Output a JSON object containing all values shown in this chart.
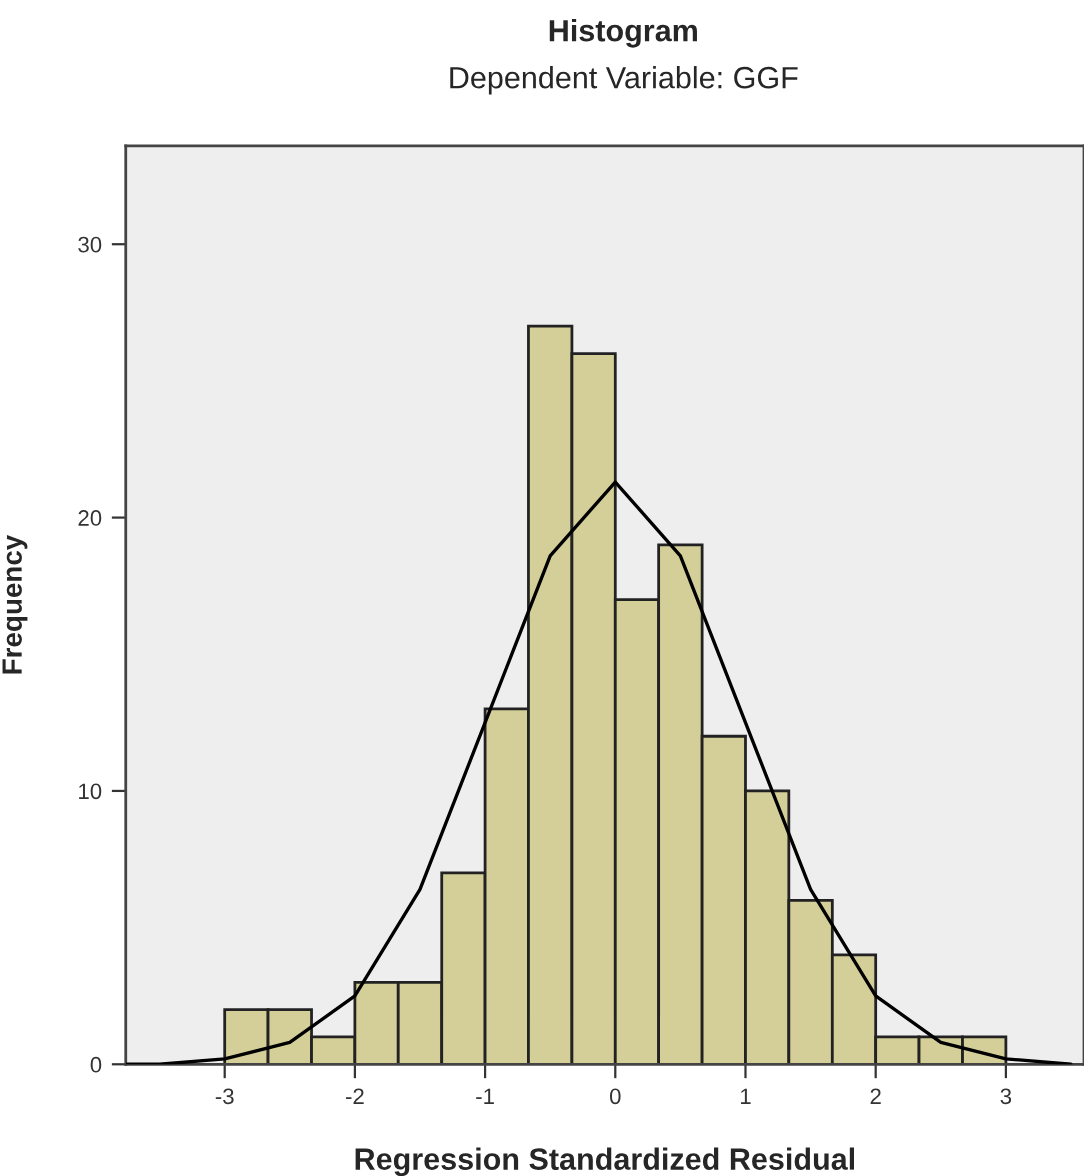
{
  "chart_data": {
    "type": "histogram",
    "title": "Histogram",
    "subtitle": "Dependent Variable: GGF",
    "xlabel": "Regression Standardized Residual",
    "ylabel": "Frequency",
    "bins": [
      -3,
      -2.667,
      -2.333,
      -2,
      -1.667,
      -1.333,
      -1,
      -0.667,
      -0.333,
      0,
      0.333,
      0.667,
      1,
      1.333,
      1.667,
      2,
      2.333,
      2.667,
      3
    ],
    "values": [
      2,
      2,
      1,
      3,
      3,
      7,
      13,
      27,
      26,
      17,
      19,
      12,
      10,
      6,
      4,
      1,
      1,
      1
    ],
    "color": "#d4cf98",
    "series": [
      {
        "type": "line",
        "color": "#000000",
        "x": [
          -3.75,
          -3.5,
          -3,
          -2.5,
          -2,
          -1.5,
          -1,
          -0.5,
          0,
          0.5,
          1,
          1.5,
          2,
          2.5,
          3,
          3.5
        ],
        "values": [
          0.0,
          0.0,
          0.2,
          0.8,
          2.5,
          6.4,
          12.5,
          18.6,
          21.3,
          18.6,
          12.5,
          6.4,
          2.5,
          0.8,
          0.2,
          0.0
        ]
      }
    ],
    "xlim": [
      -3.76,
      3.6
    ],
    "ylim": [
      0,
      33.6
    ],
    "xticks": [
      -3,
      -2,
      -1,
      0,
      1,
      2,
      3
    ],
    "yticks": [
      0,
      10,
      20,
      30
    ],
    "grid": false,
    "legend": false
  }
}
